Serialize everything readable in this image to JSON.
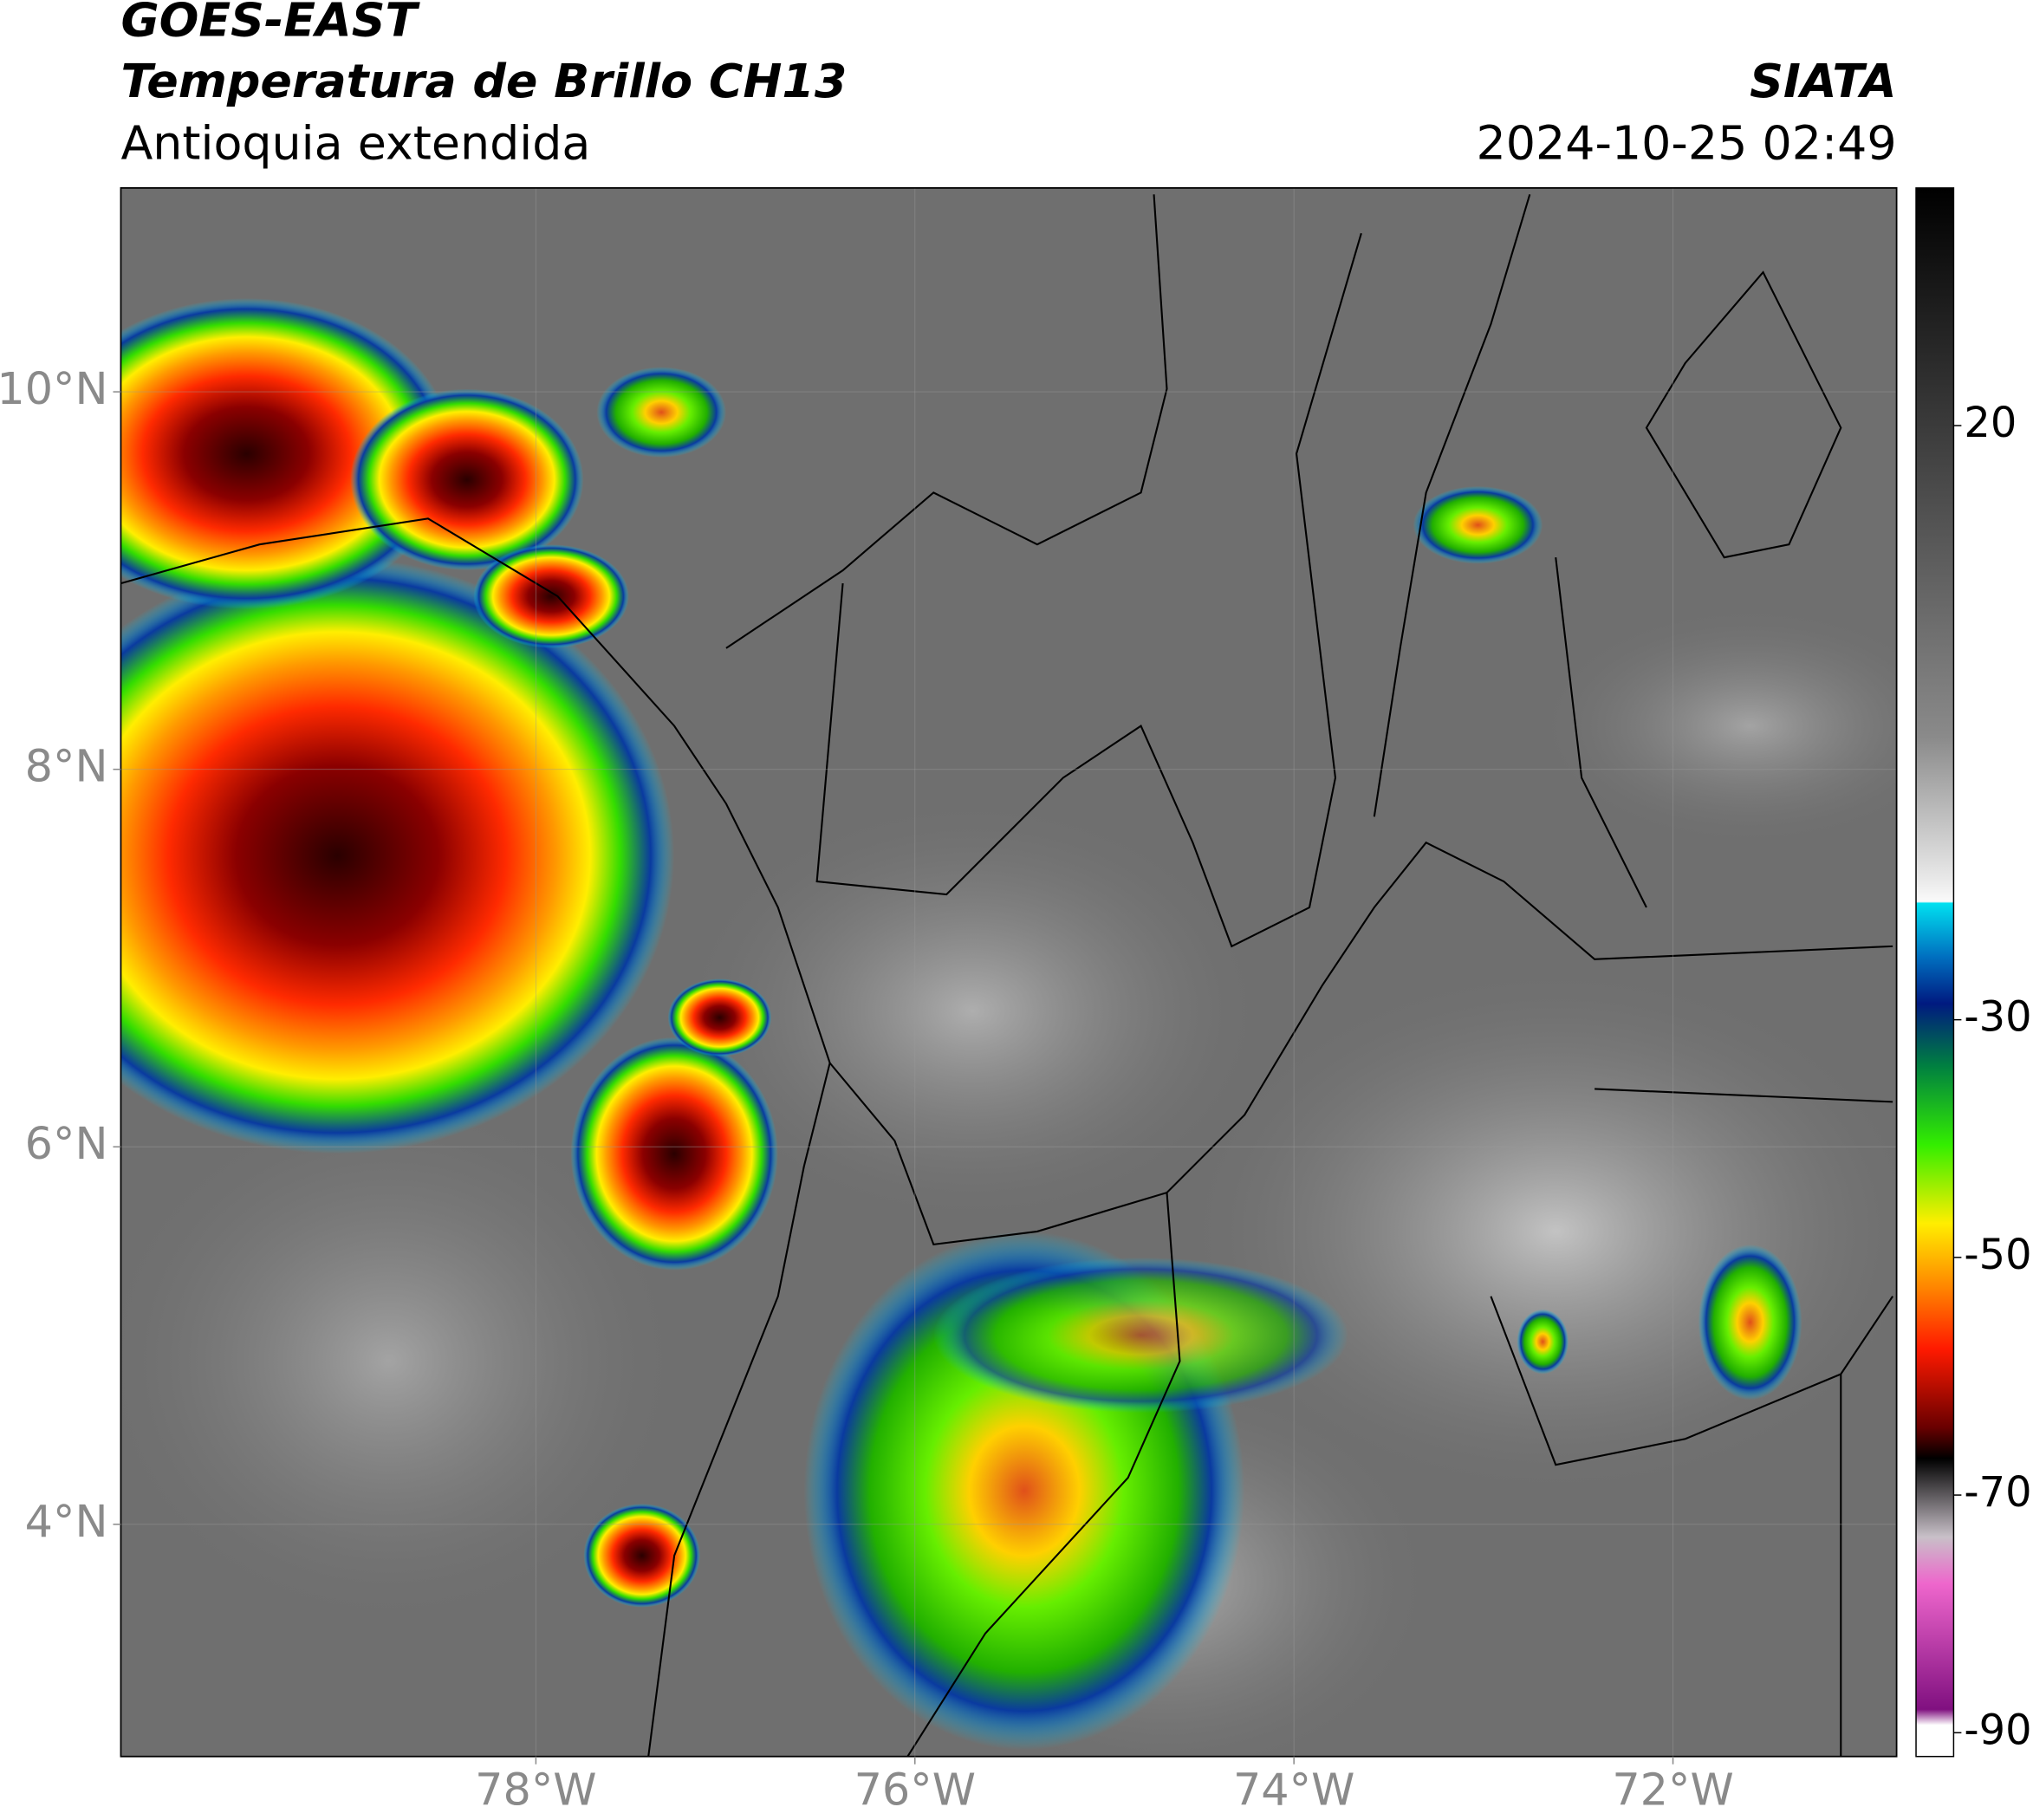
{
  "map": {
    "title": "GOES-EAST",
    "subtitle": "Temperatura de Brillo CH13",
    "region": "Antioquia extendida",
    "source": "SIATA",
    "datetime": "2024-10-25 02:49",
    "xlim": [
      -80.19,
      -70.82
    ],
    "ylim": [
      2.77,
      11.08
    ],
    "xticks": [
      {
        "value": -78,
        "label": "78°W"
      },
      {
        "value": -76,
        "label": "76°W"
      },
      {
        "value": -74,
        "label": "74°W"
      },
      {
        "value": -72,
        "label": "72°W"
      }
    ],
    "yticks": [
      {
        "value": 4,
        "label": "4°N"
      },
      {
        "value": 6,
        "label": "6°N"
      },
      {
        "value": 8,
        "label": "8°N"
      },
      {
        "value": 10,
        "label": "10°N"
      }
    ],
    "colorbar": {
      "lim": [
        -92,
        40
      ],
      "ticks": [
        20,
        -30,
        -50,
        -70,
        -90
      ]
    }
  }
}
